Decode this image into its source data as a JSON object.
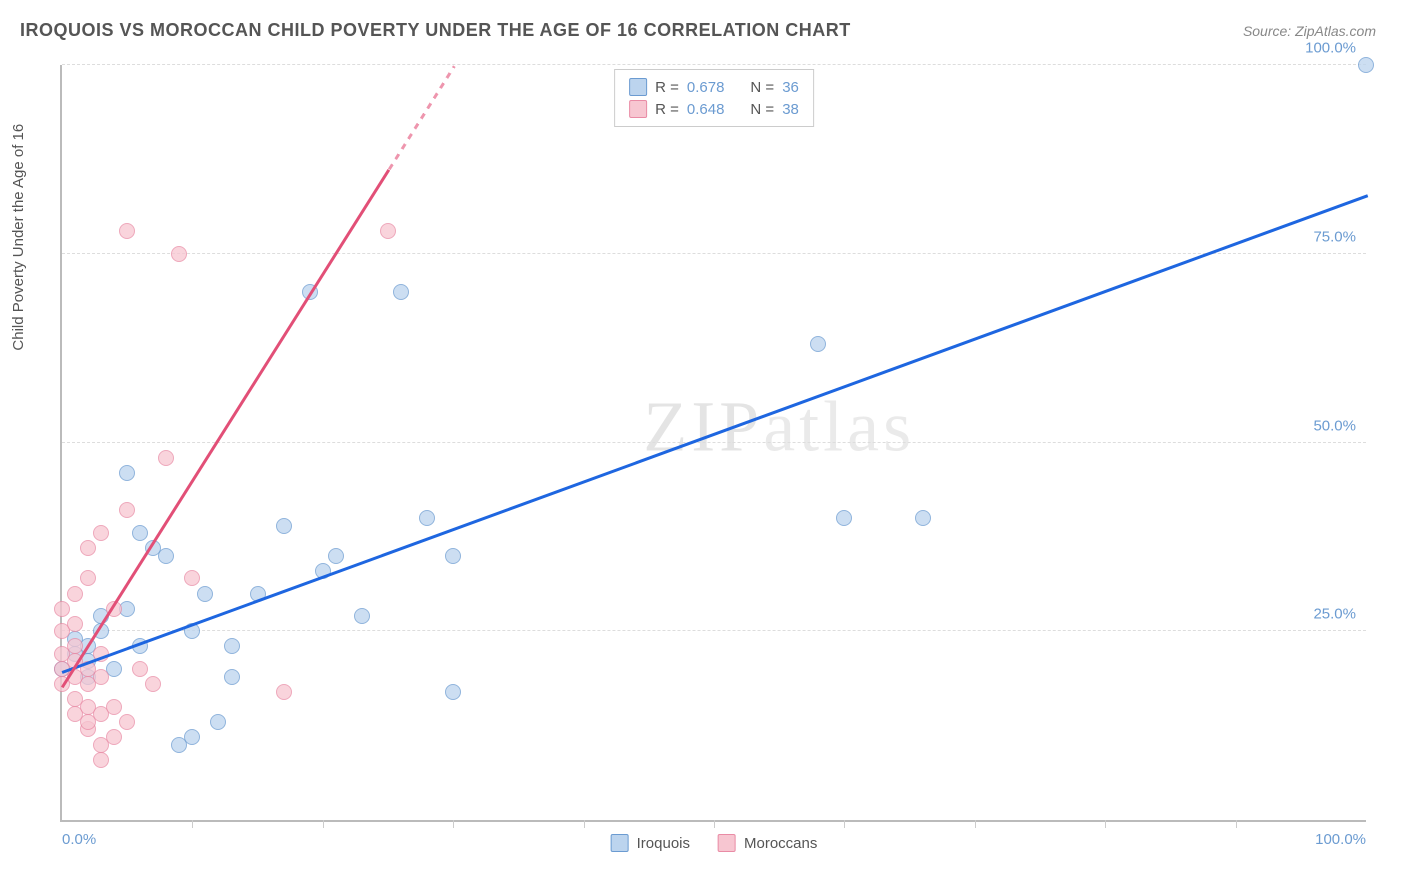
{
  "header": {
    "title": "IROQUOIS VS MOROCCAN CHILD POVERTY UNDER THE AGE OF 16 CORRELATION CHART",
    "source": "Source: ZipAtlas.com"
  },
  "watermark": "ZIPatlas",
  "chart": {
    "type": "scatter",
    "ylabel": "Child Poverty Under the Age of 16",
    "xlim": [
      0,
      100
    ],
    "ylim": [
      0,
      100
    ],
    "xticks": [
      0,
      100
    ],
    "xtick_labels": [
      "0.0%",
      "100.0%"
    ],
    "ytick_positions": [
      25,
      50,
      75,
      100
    ],
    "ytick_labels": [
      "25.0%",
      "50.0%",
      "75.0%",
      "100.0%"
    ],
    "minor_xticks": [
      10,
      20,
      30,
      40,
      50,
      60,
      70,
      80,
      90
    ],
    "background_color": "#ffffff",
    "grid_color": "#dddddd",
    "axis_color": "#bbbbbb",
    "tick_label_color_x": "#6b9bd1",
    "tick_label_color_y_blue": "#6b9bd1",
    "series": [
      {
        "name": "Iroquois",
        "color_fill": "#bcd4ee",
        "color_stroke": "#6b9bd1",
        "r": 0.678,
        "n": 36,
        "trend": {
          "x0": 0,
          "y0": 20,
          "x1": 100,
          "y1": 83,
          "color": "#1e66e0",
          "width": 2.5
        },
        "points": [
          [
            0,
            20
          ],
          [
            1,
            22
          ],
          [
            1,
            24
          ],
          [
            2,
            21
          ],
          [
            2,
            19
          ],
          [
            2,
            23
          ],
          [
            3,
            25
          ],
          [
            3,
            27
          ],
          [
            4,
            20
          ],
          [
            5,
            28
          ],
          [
            5,
            46
          ],
          [
            6,
            23
          ],
          [
            6,
            38
          ],
          [
            7,
            36
          ],
          [
            8,
            35
          ],
          [
            9,
            10
          ],
          [
            10,
            11
          ],
          [
            10,
            25
          ],
          [
            11,
            30
          ],
          [
            12,
            13
          ],
          [
            13,
            19
          ],
          [
            13,
            23
          ],
          [
            15,
            30
          ],
          [
            17,
            39
          ],
          [
            19,
            70
          ],
          [
            20,
            33
          ],
          [
            21,
            35
          ],
          [
            23,
            27
          ],
          [
            26,
            70
          ],
          [
            28,
            40
          ],
          [
            30,
            17
          ],
          [
            30,
            35
          ],
          [
            58,
            63
          ],
          [
            60,
            40
          ],
          [
            66,
            40
          ],
          [
            100,
            100
          ]
        ]
      },
      {
        "name": "Moroccans",
        "color_fill": "#f7c6d1",
        "color_stroke": "#e98ba5",
        "r": 0.648,
        "n": 38,
        "trend": {
          "x0": 0,
          "y0": 18,
          "x1": 30,
          "y1": 100,
          "color": "#e24f77",
          "width": 2.5,
          "dashed_extent": [
            25,
            100
          ]
        },
        "points": [
          [
            0,
            18
          ],
          [
            0,
            20
          ],
          [
            0,
            22
          ],
          [
            0,
            25
          ],
          [
            0,
            28
          ],
          [
            1,
            14
          ],
          [
            1,
            16
          ],
          [
            1,
            19
          ],
          [
            1,
            21
          ],
          [
            1,
            23
          ],
          [
            1,
            26
          ],
          [
            1,
            30
          ],
          [
            2,
            12
          ],
          [
            2,
            13
          ],
          [
            2,
            15
          ],
          [
            2,
            18
          ],
          [
            2,
            20
          ],
          [
            2,
            32
          ],
          [
            2,
            36
          ],
          [
            3,
            8
          ],
          [
            3,
            10
          ],
          [
            3,
            14
          ],
          [
            3,
            19
          ],
          [
            3,
            22
          ],
          [
            3,
            38
          ],
          [
            4,
            11
          ],
          [
            4,
            15
          ],
          [
            4,
            28
          ],
          [
            5,
            13
          ],
          [
            5,
            41
          ],
          [
            5,
            78
          ],
          [
            6,
            20
          ],
          [
            7,
            18
          ],
          [
            8,
            48
          ],
          [
            9,
            75
          ],
          [
            10,
            32
          ],
          [
            17,
            17
          ],
          [
            25,
            78
          ]
        ]
      }
    ],
    "legend_stats": [
      {
        "swatch_fill": "#bcd4ee",
        "swatch_stroke": "#6b9bd1",
        "r_label": "R =",
        "r_val": "0.678",
        "n_label": "N =",
        "n_val": "36"
      },
      {
        "swatch_fill": "#f7c6d1",
        "swatch_stroke": "#e98ba5",
        "r_label": "R =",
        "r_val": "0.648",
        "n_label": "N =",
        "n_val": "38"
      }
    ],
    "legend_bottom": [
      {
        "swatch_fill": "#bcd4ee",
        "swatch_stroke": "#6b9bd1",
        "label": "Iroquois"
      },
      {
        "swatch_fill": "#f7c6d1",
        "swatch_stroke": "#e98ba5",
        "label": "Moroccans"
      }
    ]
  }
}
